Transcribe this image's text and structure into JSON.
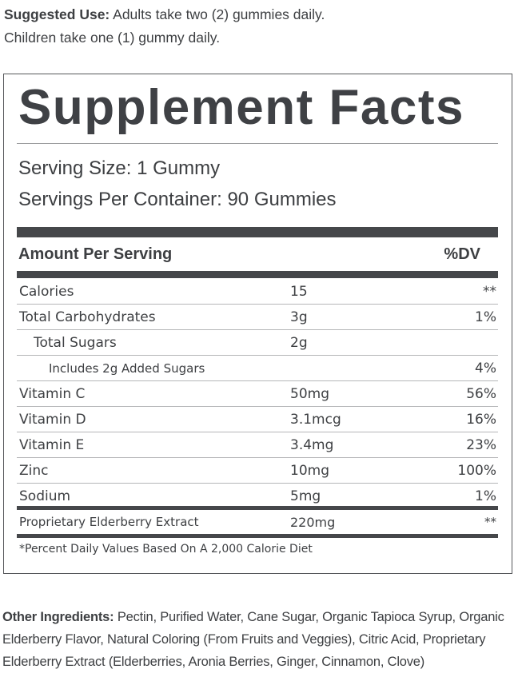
{
  "suggested_use": {
    "label": "Suggested Use:",
    "line1": "Adults take two (2) gummies daily.",
    "line2": "Children take one (1) gummy daily."
  },
  "facts": {
    "title": "Supplement Facts",
    "serving_size": "Serving Size: 1 Gummy",
    "servings_per_container": "Servings Per Container: 90 Gummies",
    "header_amount": "Amount Per Serving",
    "header_dv": "%DV",
    "rows": [
      {
        "name": "Calories",
        "amount": "15",
        "dv": "**"
      },
      {
        "name": "Total Carbohydrates",
        "amount": "3g",
        "dv": "1%"
      },
      {
        "name": "Total Sugars",
        "amount": "2g",
        "dv": ""
      },
      {
        "name": "Includes 2g Added Sugars",
        "amount": "",
        "dv": "4%"
      },
      {
        "name": "Vitamin C",
        "amount": "50mg",
        "dv": "56%"
      },
      {
        "name": "Vitamin D",
        "amount": "3.1mcg",
        "dv": "16%"
      },
      {
        "name": "Vitamin E",
        "amount": "3.4mg",
        "dv": "23%"
      },
      {
        "name": "Zinc",
        "amount": "10mg",
        "dv": "100%"
      },
      {
        "name": "Sodium",
        "amount": "5mg",
        "dv": "1%"
      }
    ],
    "proprietary": {
      "name": "Proprietary Elderberry Extract",
      "amount": "220mg",
      "dv": "**"
    },
    "footnote": "*Percent Daily Values Based On A 2,000 Calorie Diet"
  },
  "other_ingredients": {
    "label": "Other Ingredients:",
    "text": "Pectin, Purified Water, Cane Sugar, Organic Tapioca Syrup, Organic Elderberry Flavor, Natural Coloring (From Fruits and Veggies), Citric Acid, Proprietary Elderberry Extract (Elderberries, Aronia Berries, Ginger, Cinnamon, Clove)"
  }
}
